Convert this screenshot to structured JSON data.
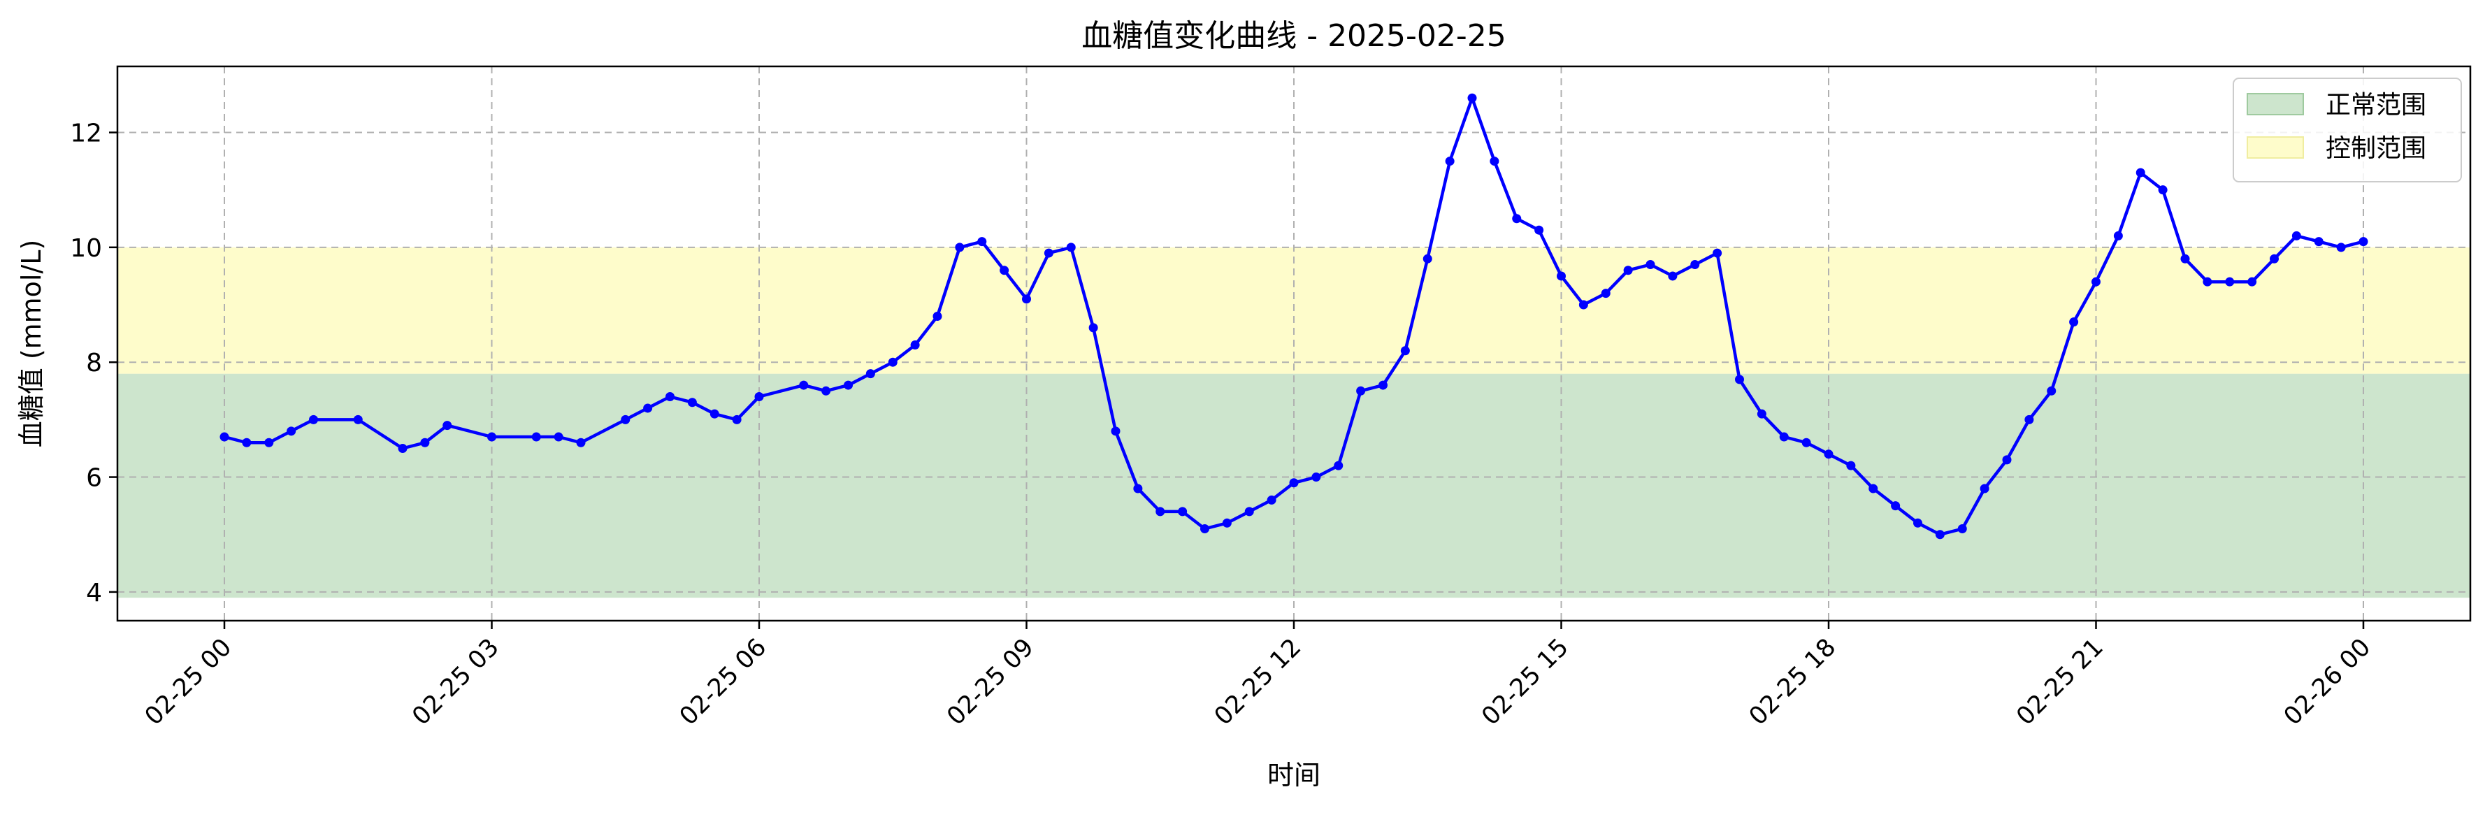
{
  "chart_data": {
    "type": "line",
    "title": "血糖值变化曲线 - 2025-02-25",
    "xlabel": "时间",
    "ylabel": "血糖值 (mmol/L)",
    "x_ticks": [
      "02-25 00",
      "02-25 03",
      "02-25 06",
      "02-25 09",
      "02-25 12",
      "02-25 15",
      "02-25 18",
      "02-25 21",
      "02-26 00"
    ],
    "y_ticks": [
      4,
      6,
      8,
      10,
      12
    ],
    "xlim_hours": [
      -1.2,
      25.2
    ],
    "ylim": [
      3.5,
      13.15
    ],
    "grid": true,
    "legend_position": "top-right",
    "bands": [
      {
        "name": "正常范围",
        "from": 3.9,
        "to": 7.8,
        "color": "#cde5cd"
      },
      {
        "name": "控制范围",
        "from": 7.8,
        "to": 10.0,
        "color": "#fefccb"
      }
    ],
    "series": [
      {
        "color": "#0000ff",
        "x_hours": [
          0.0,
          0.25,
          0.5,
          0.75,
          1.0,
          1.5,
          2.0,
          2.25,
          2.5,
          3.0,
          3.5,
          3.75,
          4.0,
          4.5,
          4.75,
          5.0,
          5.25,
          5.5,
          5.75,
          6.0,
          6.5,
          6.75,
          7.0,
          7.25,
          7.5,
          7.75,
          8.0,
          8.25,
          8.5,
          8.75,
          9.0,
          9.25,
          9.5,
          9.75,
          10.0,
          10.25,
          10.5,
          10.75,
          11.0,
          11.25,
          11.5,
          11.75,
          12.0,
          12.25,
          12.5,
          12.75,
          13.0,
          13.25,
          13.5,
          13.75,
          14.0,
          14.25,
          14.5,
          14.75,
          15.0,
          15.25,
          15.5,
          15.75,
          16.0,
          16.25,
          16.5,
          16.75,
          17.0,
          17.25,
          17.5,
          17.75,
          18.0,
          18.25,
          18.5,
          18.75,
          19.0,
          19.25,
          19.5,
          19.75,
          20.0,
          20.25,
          20.5,
          20.75,
          21.0,
          21.25,
          21.5,
          21.75,
          22.0,
          22.25,
          22.5,
          22.75,
          23.0,
          23.25,
          23.5,
          23.75,
          24.0
        ],
        "y_values": [
          6.7,
          6.6,
          6.6,
          6.8,
          7.0,
          7.0,
          6.5,
          6.6,
          6.9,
          6.7,
          6.7,
          6.7,
          6.6,
          7.0,
          7.2,
          7.4,
          7.3,
          7.1,
          7.0,
          7.4,
          7.6,
          7.5,
          7.6,
          7.8,
          8.0,
          8.3,
          8.8,
          10.0,
          10.1,
          9.6,
          9.1,
          9.9,
          10.0,
          8.6,
          6.8,
          5.8,
          5.4,
          5.4,
          5.1,
          5.2,
          5.4,
          5.6,
          5.9,
          6.0,
          6.2,
          7.5,
          7.6,
          8.2,
          9.8,
          11.5,
          12.6,
          11.5,
          10.5,
          10.3,
          9.5,
          9.0,
          9.2,
          9.6,
          9.7,
          9.5,
          9.7,
          9.9,
          7.7,
          7.1,
          6.7,
          6.6,
          6.4,
          6.2,
          5.8,
          5.5,
          5.2,
          5.0,
          5.1,
          5.8,
          6.3,
          7.0,
          7.5,
          8.7,
          9.4,
          10.2,
          11.3,
          11.0,
          9.8,
          9.4,
          9.4,
          9.4,
          9.8,
          10.2,
          10.1,
          10.0,
          10.1
        ]
      }
    ]
  }
}
